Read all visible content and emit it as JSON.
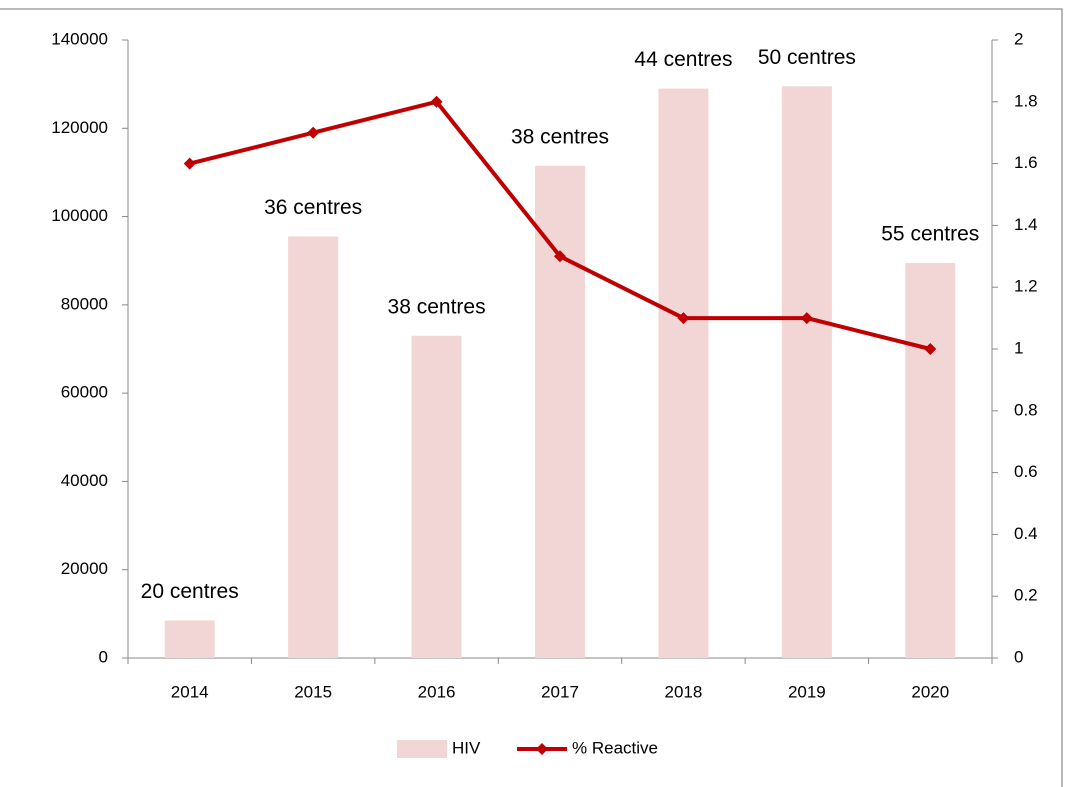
{
  "chart_data": {
    "type": "bar",
    "categories": [
      "2014",
      "2015",
      "2016",
      "2017",
      "2018",
      "2019",
      "2020"
    ],
    "series": [
      {
        "name": "HIV",
        "type": "bar",
        "color": "#f2d5d5",
        "values": [
          8500,
          95500,
          73000,
          111500,
          129000,
          129500,
          89500
        ]
      },
      {
        "name": "% Reactive",
        "type": "line",
        "axis": "y2",
        "color": "#c00000",
        "values": [
          1.6,
          1.7,
          1.8,
          1.3,
          1.1,
          1.1,
          1.0
        ]
      }
    ],
    "annotations": [
      "20 centres",
      "36 centres",
      "38 centres",
      "38 centres",
      "44 centres",
      "50 centres",
      "55 centres"
    ],
    "ylim": [
      0,
      140000
    ],
    "yticks": [
      0,
      20000,
      40000,
      60000,
      80000,
      100000,
      120000,
      140000
    ],
    "y2lim": [
      0,
      2
    ],
    "y2ticks": [
      0,
      0.2,
      0.4,
      0.6,
      0.8,
      1,
      1.2,
      1.4,
      1.6,
      1.8,
      2
    ],
    "legend": "bottom"
  }
}
